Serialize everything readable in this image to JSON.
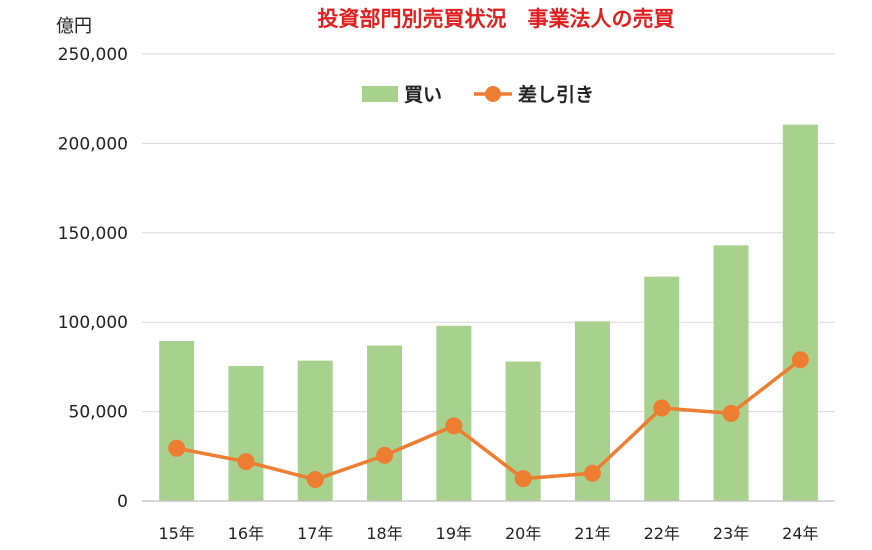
{
  "chart_data": {
    "type": "bar",
    "title": "投資部門別売買状況　事業法人の売買",
    "y_unit": "億円",
    "categories": [
      "15年",
      "16年",
      "17年",
      "18年",
      "19年",
      "20年",
      "21年",
      "22年",
      "23年",
      "24年"
    ],
    "series": [
      {
        "name": "買い",
        "type": "bar",
        "color": "#a9d18e",
        "values": [
          89500,
          75500,
          78500,
          87000,
          98000,
          78000,
          100500,
          125500,
          143000,
          210500
        ]
      },
      {
        "name": "差し引き",
        "type": "line",
        "color": "#ed7d31",
        "values": [
          29500,
          22000,
          12000,
          25500,
          42000,
          12500,
          15500,
          52000,
          49000,
          79000
        ]
      }
    ],
    "ylim": [
      0,
      250000
    ],
    "yticks": [
      0,
      50000,
      100000,
      150000,
      200000,
      250000
    ],
    "ytick_labels": [
      "0",
      "50,000",
      "100,000",
      "150,000",
      "200,000",
      "250,000"
    ],
    "grid": true,
    "legend_position": "top-center"
  }
}
